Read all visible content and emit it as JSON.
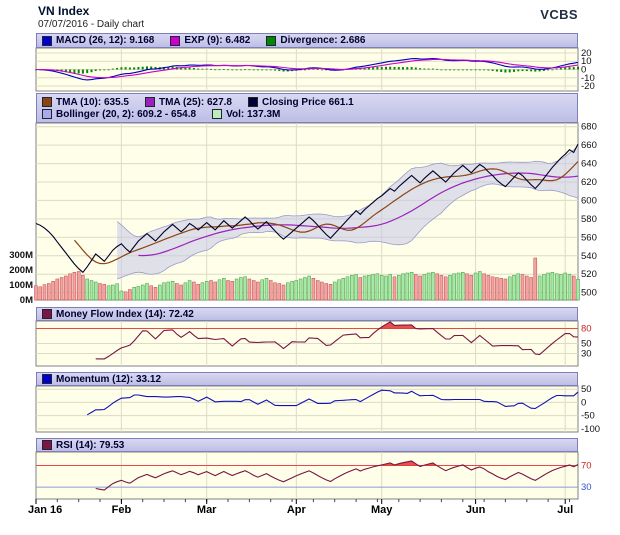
{
  "header": {
    "title": "VN Index",
    "subtitle": "07/07/2016 - Daily chart",
    "brand": "VCBS"
  },
  "legends": {
    "macd": [
      {
        "label": "MACD (26, 12): 9.168",
        "color": "#0000CC"
      },
      {
        "label": "EXP (9): 6.482",
        "color": "#CC00CC"
      },
      {
        "label": "Divergence: 2.686",
        "color": "#008800"
      }
    ],
    "price_row1": [
      {
        "label": "TMA (10): 635.5",
        "color": "#8B4513"
      },
      {
        "label": "TMA (25): 627.8",
        "color": "#9922BB"
      },
      {
        "label": "Closing Price 661.1",
        "color": "#000033"
      }
    ],
    "price_row2": [
      {
        "label": "Bollinger (20, 2): 609.2 - 654.8",
        "color": "#AAAAE8"
      },
      {
        "label": "Vol: 137.3M",
        "color": "#BBEEBB"
      }
    ],
    "mfi": [
      {
        "label": "Money Flow Index (14): 72.42",
        "color": "#7A1545"
      }
    ],
    "momentum": [
      {
        "label": "Momentum (12): 33.12",
        "color": "#0000CC"
      }
    ],
    "rsi": [
      {
        "label": "RSI (14): 79.53",
        "color": "#7A1545"
      }
    ]
  },
  "axes": {
    "price_ticks": [
      680,
      660,
      640,
      620,
      600,
      580,
      560,
      540,
      520,
      500
    ],
    "volume_ticks": [
      {
        "label": "300M",
        "value": 300
      },
      {
        "label": "200M",
        "value": 200
      },
      {
        "label": "100M",
        "value": 100
      },
      {
        "label": "0M",
        "value": 0
      }
    ],
    "macd_ticks": [
      20,
      10,
      0,
      -10,
      -20
    ],
    "mfi_ticks": [
      {
        "label": "80",
        "value": 80,
        "color": "#CC2222"
      },
      {
        "label": "50",
        "value": 50,
        "color": "#111111"
      },
      {
        "label": "30",
        "value": 30,
        "color": "#111111"
      }
    ],
    "momentum_ticks": [
      50,
      0,
      -50,
      -100
    ],
    "rsi_ticks": [
      {
        "label": "70",
        "value": 70,
        "color": "#CC2222"
      },
      {
        "label": "30",
        "value": 30,
        "color": "#3355CC"
      }
    ],
    "x_labels": [
      {
        "label": "Jan 16",
        "day": 0
      },
      {
        "label": "Feb",
        "day": 20
      },
      {
        "label": "Mar",
        "day": 40
      },
      {
        "label": "Apr",
        "day": 61
      },
      {
        "label": "May",
        "day": 81
      },
      {
        "label": "Jun",
        "day": 103
      },
      {
        "label": "Jul",
        "day": 124
      }
    ]
  },
  "colors": {
    "panel_bg": "#FFFFE9",
    "panel_border": "#808080",
    "grid": "#DBDBC6",
    "macd": "#0000BB",
    "exp": "#CC00CC",
    "divergence": "#008800",
    "close": "#000028",
    "tma10": "#8B4513",
    "tma25": "#9922BB",
    "bollinger_fill": "#C6C6EA",
    "bollinger_edge": "#9A9ACE",
    "vol_up": "#A6E8A6",
    "vol_up_edge": "#3C9A3C",
    "vol_down": "#F2A2A2",
    "vol_down_edge": "#C24848",
    "mfi": "#7A1545",
    "momentum": "#1111BB",
    "rsi": "#7A1545",
    "threshold": "#EE4444",
    "oversold": "#4466DD",
    "over_fill": "#E03030"
  },
  "chart_data": {
    "type": "line",
    "title": "VN Index",
    "subtitle": "07/07/2016 - Daily chart",
    "panel_order": [
      "macd",
      "price_with_volume",
      "mfi",
      "momentum",
      "rsi"
    ],
    "panel_ranges": {
      "macd": [
        -26,
        26
      ],
      "price": [
        492,
        684
      ],
      "mfi": [
        5,
        95
      ],
      "momentum": [
        -112,
        62
      ],
      "rsi": [
        8,
        95
      ]
    },
    "indicators": {
      "macd_fast": 12,
      "macd_slow": 26,
      "macd_signal": 9,
      "tma_short": 10,
      "tma_long": 25,
      "bollinger_period": 20,
      "bollinger_stddev": 2,
      "mfi_period": 14,
      "momentum_period": 12,
      "rsi_period": 14
    },
    "current_values": {
      "macd": 9.168,
      "exp": 6.482,
      "divergence": 2.686,
      "tma10": 635.5,
      "tma25": 627.8,
      "close": 661.1,
      "bollinger_low": 609.2,
      "bollinger_high": 654.8,
      "volume": "137.3M",
      "mfi": 72.42,
      "momentum": 33.12,
      "rsi": 79.53
    },
    "close": [
      575,
      573,
      570,
      566,
      561,
      555,
      549,
      543,
      537,
      531,
      526,
      522,
      528,
      535,
      542,
      538,
      534,
      540,
      546,
      550,
      553,
      548,
      544,
      550,
      556,
      560,
      564,
      560,
      556,
      561,
      566,
      570,
      574,
      570,
      566,
      570,
      575,
      572,
      568,
      572,
      576,
      572,
      568,
      573,
      578,
      574,
      570,
      574,
      578,
      582,
      578,
      573,
      569,
      573,
      577,
      572,
      567,
      562,
      558,
      562,
      566,
      570,
      574,
      578,
      582,
      578,
      573,
      568,
      563,
      559,
      564,
      569,
      574,
      579,
      584,
      589,
      585,
      590,
      594,
      598,
      602,
      605,
      609,
      613,
      610,
      615,
      619,
      623,
      627,
      623,
      619,
      624,
      628,
      632,
      628,
      624,
      620,
      625,
      630,
      634,
      638,
      634,
      630,
      635,
      639,
      636,
      631,
      627,
      622,
      618,
      615,
      620,
      625,
      630,
      627,
      622,
      617,
      613,
      618,
      624,
      630,
      636,
      641,
      646,
      650,
      655,
      652,
      661.1
    ],
    "volume_m": [
      95,
      88,
      102,
      110,
      125,
      140,
      150,
      160,
      175,
      185,
      190,
      165,
      140,
      130,
      120,
      110,
      105,
      95,
      100,
      108,
      60,
      55,
      70,
      85,
      90,
      100,
      110,
      95,
      85,
      100,
      115,
      120,
      125,
      110,
      100,
      115,
      130,
      120,
      105,
      115,
      125,
      130,
      120,
      135,
      145,
      130,
      125,
      140,
      150,
      155,
      140,
      130,
      120,
      135,
      145,
      130,
      115,
      110,
      100,
      115,
      125,
      130,
      140,
      150,
      160,
      145,
      130,
      120,
      110,
      105,
      120,
      135,
      145,
      155,
      165,
      170,
      150,
      160,
      165,
      170,
      175,
      165,
      160,
      170,
      155,
      165,
      175,
      180,
      185,
      170,
      160,
      170,
      180,
      185,
      175,
      165,
      155,
      165,
      175,
      180,
      185,
      175,
      165,
      180,
      190,
      175,
      165,
      155,
      150,
      145,
      140,
      155,
      165,
      175,
      170,
      160,
      150,
      280,
      160,
      170,
      180,
      185,
      175,
      170,
      180,
      170,
      160,
      137.3
    ]
  }
}
